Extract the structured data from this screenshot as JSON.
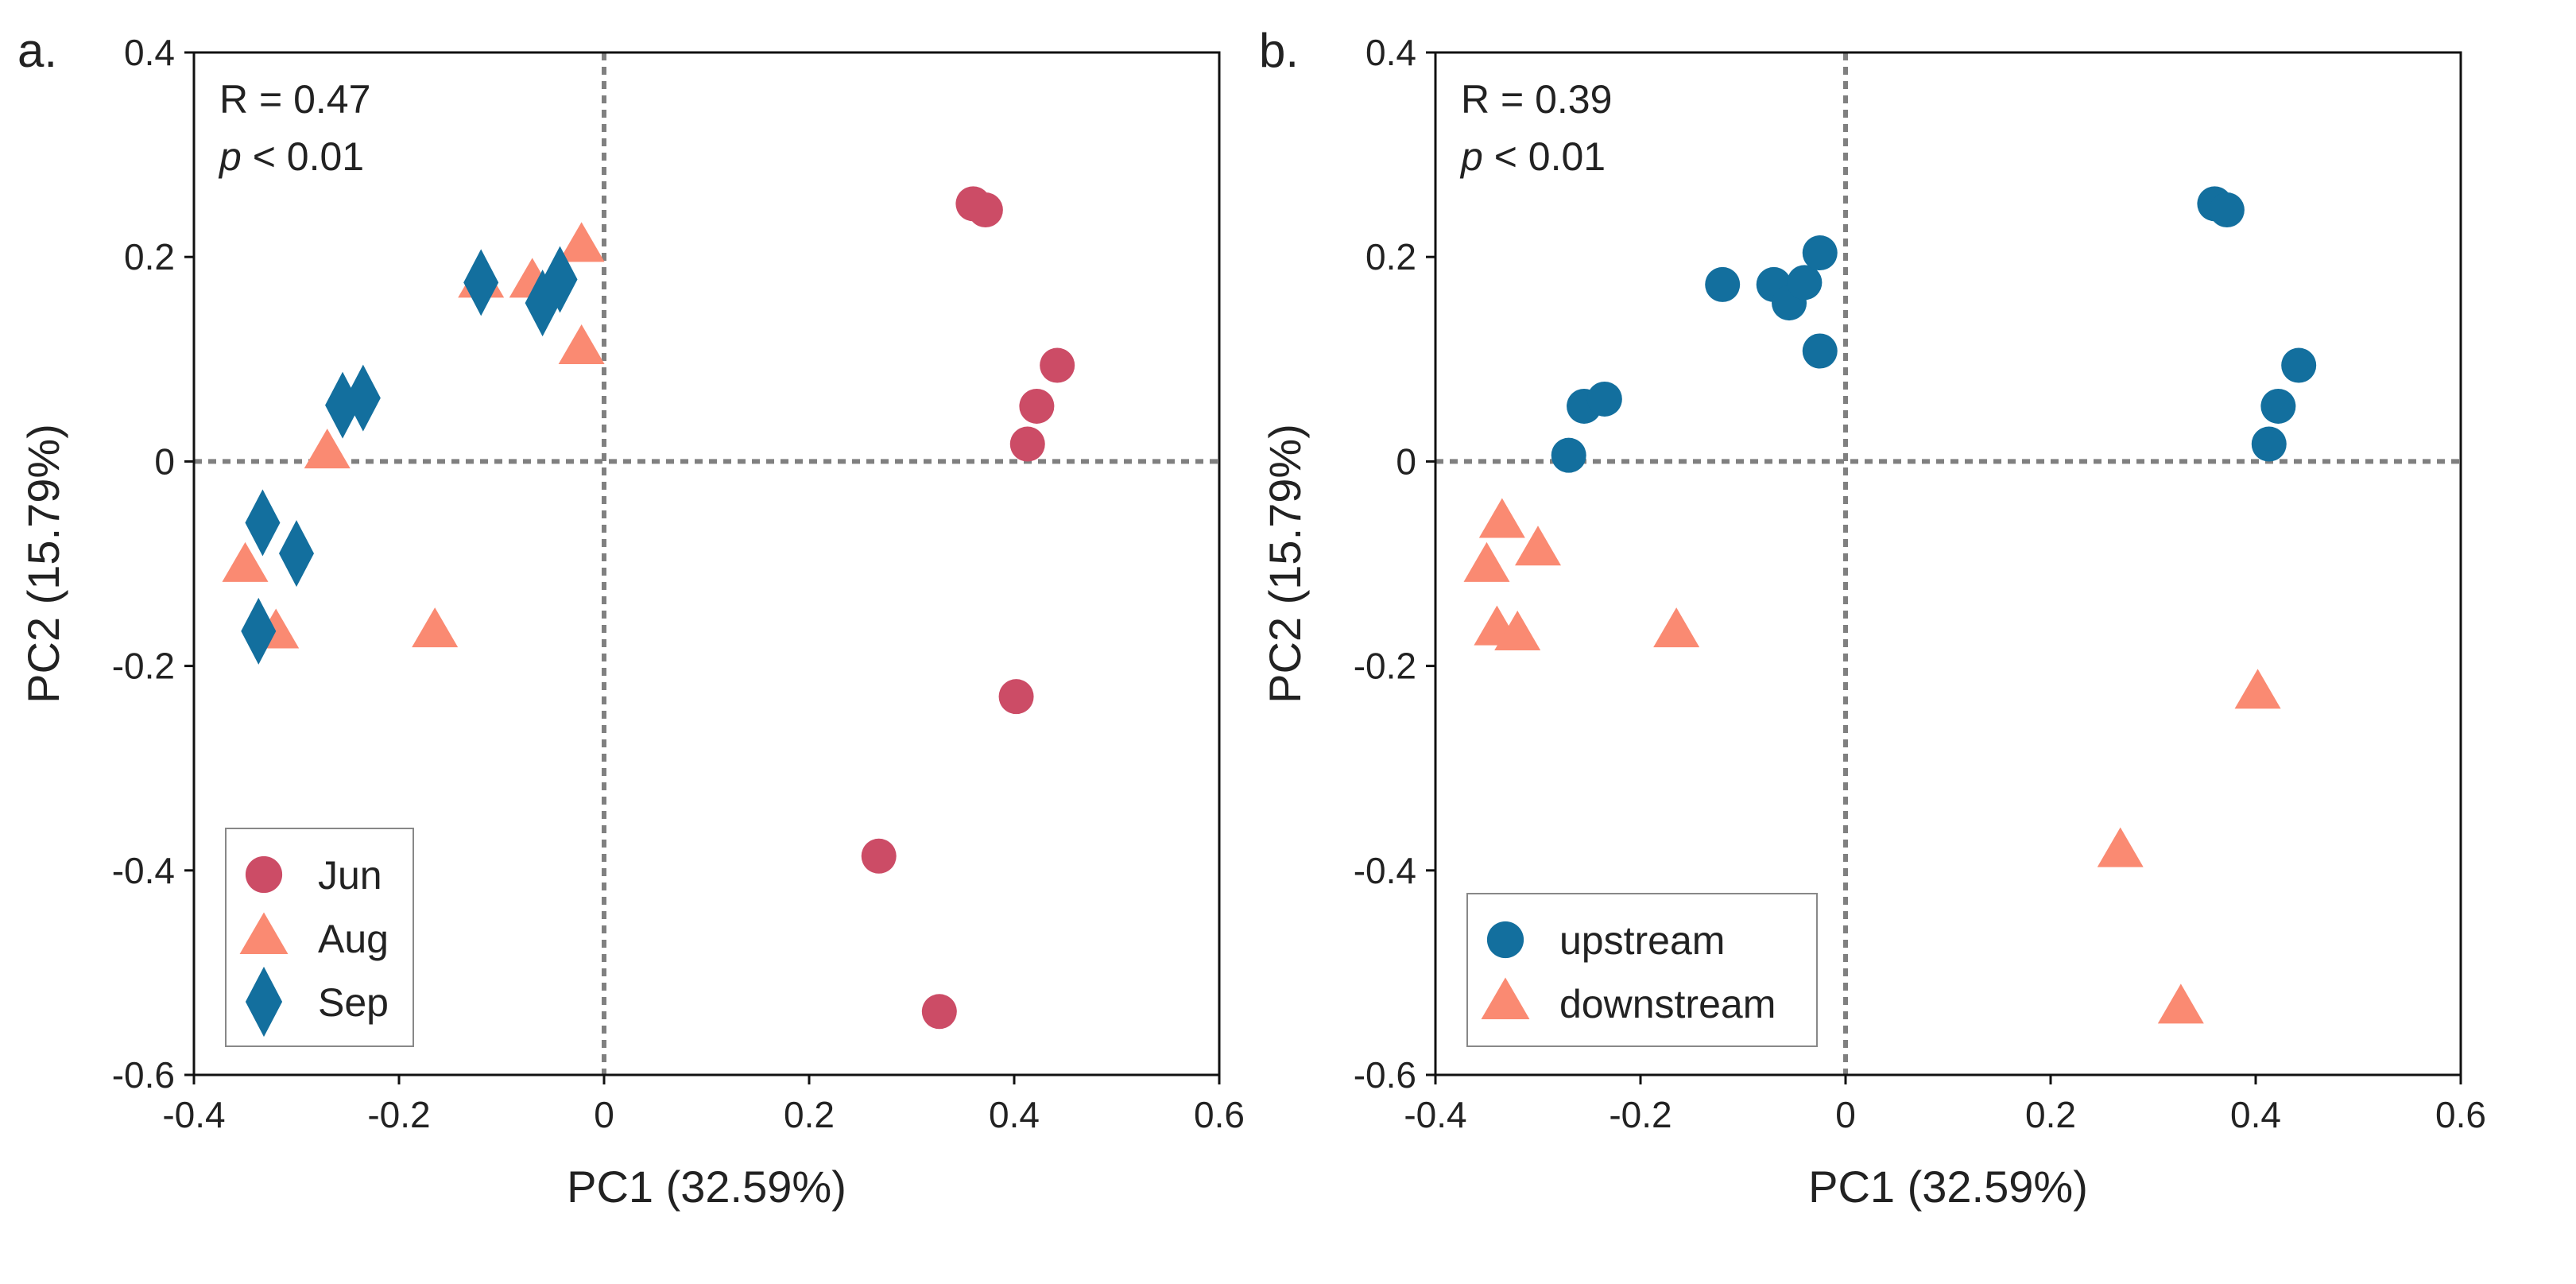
{
  "chart_data": [
    {
      "type": "scatter",
      "panel_label": "a.",
      "xlabel": "PC1 (32.59%)",
      "ylabel": "PC2 (15.79%)",
      "xlim": [
        -0.4,
        0.6
      ],
      "ylim": [
        -0.6,
        0.4
      ],
      "xticks": [
        "-0.4",
        "-0.2",
        "0",
        "0.2",
        "0.4",
        "0.6"
      ],
      "yticks": [
        "-0.6",
        "-0.4",
        "-0.2",
        "0",
        "0.2",
        "0.4"
      ],
      "xtick_values": [
        -0.4,
        -0.2,
        0,
        0.2,
        0.4,
        0.6
      ],
      "ytick_values": [
        -0.6,
        -0.4,
        -0.2,
        0,
        0.2,
        0.4
      ],
      "stat_r": "R = 0.47",
      "stat_p_symbol": "p",
      "stat_p": " < 0.01",
      "legend_position": "bottom-left",
      "reference_lines": {
        "x": 0,
        "y": 0,
        "style": "dotted"
      },
      "series": [
        {
          "name": "Jun",
          "marker": "circle",
          "color": "#cc4c66",
          "points": [
            [
              0.36,
              0.252
            ],
            [
              0.372,
              0.246
            ],
            [
              0.442,
              0.094
            ],
            [
              0.422,
              0.054
            ],
            [
              0.413,
              0.017
            ],
            [
              0.402,
              -0.23
            ],
            [
              0.268,
              -0.386
            ],
            [
              0.327,
              -0.538
            ]
          ]
        },
        {
          "name": "Aug",
          "marker": "triangle",
          "color": "#fa8a72",
          "points": [
            [
              -0.022,
              0.21
            ],
            [
              -0.07,
              0.175
            ],
            [
              -0.12,
              0.175
            ],
            [
              -0.022,
              0.11
            ],
            [
              -0.27,
              0.008
            ],
            [
              -0.35,
              -0.103
            ],
            [
              -0.32,
              -0.168
            ],
            [
              -0.165,
              -0.167
            ]
          ]
        },
        {
          "name": "Sep",
          "marker": "diamond",
          "color": "#136f9e",
          "points": [
            [
              -0.12,
              0.175
            ],
            [
              -0.06,
              0.155
            ],
            [
              -0.043,
              0.178
            ],
            [
              -0.255,
              0.055
            ],
            [
              -0.235,
              0.062
            ],
            [
              -0.333,
              -0.06
            ],
            [
              -0.3,
              -0.09
            ],
            [
              -0.337,
              -0.166
            ]
          ]
        }
      ]
    },
    {
      "type": "scatter",
      "panel_label": "b.",
      "xlabel": "PC1 (32.59%)",
      "ylabel": "PC2 (15.79%)",
      "xlim": [
        -0.4,
        0.6
      ],
      "ylim": [
        -0.6,
        0.4
      ],
      "xticks": [
        "-0.4",
        "-0.2",
        "0",
        "0.2",
        "0.4",
        "0.6"
      ],
      "yticks": [
        "-0.6",
        "-0.4",
        "-0.2",
        "0",
        "0.2",
        "0.4"
      ],
      "xtick_values": [
        -0.4,
        -0.2,
        0,
        0.2,
        0.4,
        0.6
      ],
      "ytick_values": [
        -0.6,
        -0.4,
        -0.2,
        0,
        0.2,
        0.4
      ],
      "stat_r": "R = 0.39",
      "stat_p_symbol": "p",
      "stat_p": " < 0.01",
      "legend_position": "bottom-left",
      "reference_lines": {
        "x": 0,
        "y": 0,
        "style": "dotted"
      },
      "series": [
        {
          "name": "upstream",
          "marker": "circle",
          "color": "#136f9e",
          "points": [
            [
              0.36,
              0.252
            ],
            [
              0.372,
              0.246
            ],
            [
              0.442,
              0.094
            ],
            [
              0.422,
              0.054
            ],
            [
              0.413,
              0.017
            ],
            [
              -0.12,
              0.173
            ],
            [
              -0.07,
              0.173
            ],
            [
              -0.055,
              0.155
            ],
            [
              -0.04,
              0.175
            ],
            [
              -0.025,
              0.204
            ],
            [
              -0.025,
              0.108
            ],
            [
              -0.255,
              0.054
            ],
            [
              -0.235,
              0.061
            ],
            [
              -0.27,
              0.006
            ]
          ]
        },
        {
          "name": "downstream",
          "marker": "triangle",
          "color": "#fa8a72",
          "points": [
            [
              -0.335,
              -0.06
            ],
            [
              -0.35,
              -0.103
            ],
            [
              -0.3,
              -0.087
            ],
            [
              -0.34,
              -0.165
            ],
            [
              -0.32,
              -0.17
            ],
            [
              -0.165,
              -0.167
            ],
            [
              0.402,
              -0.227
            ],
            [
              0.268,
              -0.382
            ],
            [
              0.327,
              -0.535
            ]
          ]
        }
      ]
    }
  ]
}
